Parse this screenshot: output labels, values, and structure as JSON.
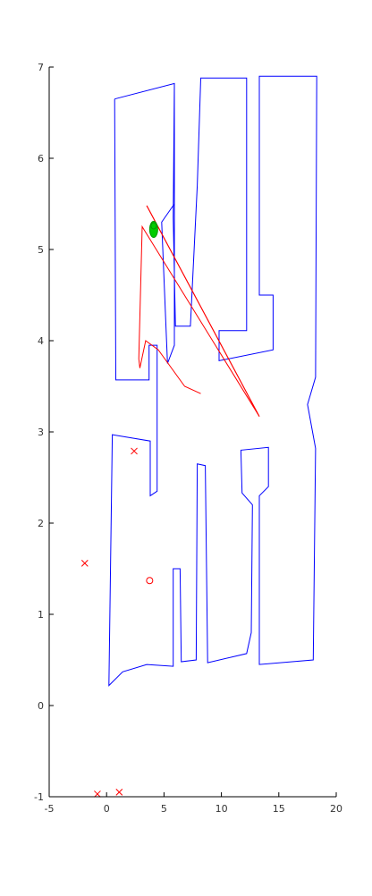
{
  "chart_data": {
    "type": "line",
    "title": "",
    "xlabel": "",
    "ylabel": "",
    "xlim": [
      -5,
      20
    ],
    "ylim": [
      -1,
      7
    ],
    "xticks": [
      -5,
      0,
      5,
      10,
      15,
      20
    ],
    "xtick_labels": [
      "-5",
      "0",
      "5",
      "10",
      "15",
      "20"
    ],
    "yticks": [
      -1,
      0,
      1,
      2,
      3,
      4,
      5,
      6,
      7
    ],
    "ytick_labels": [
      "-1",
      "0",
      "1",
      "2",
      "3",
      "4",
      "5",
      "6",
      "7"
    ],
    "grid": false,
    "colors": {
      "map": "#0000ff",
      "path": "#ff0000",
      "robot": "#00cc00"
    },
    "series": [
      {
        "kind": "map-outline",
        "points": [
          [
            0.7,
            6.65
          ],
          [
            5.9,
            6.82
          ],
          [
            5.9,
            3.95
          ],
          [
            5.3,
            3.75
          ],
          [
            4.8,
            5.3
          ],
          [
            5.9,
            5.5
          ],
          [
            5.9,
            6.82
          ]
        ]
      },
      {
        "kind": "map-outline",
        "points": [
          [
            0.7,
            6.65
          ],
          [
            0.8,
            3.57
          ],
          [
            3.7,
            3.57
          ],
          [
            3.7,
            3.95
          ],
          [
            4.4,
            3.95
          ],
          [
            4.4,
            2.35
          ],
          [
            3.8,
            2.3
          ],
          [
            3.8,
            2.9
          ],
          [
            0.5,
            2.97
          ],
          [
            0.2,
            0.22
          ],
          [
            1.4,
            0.37
          ],
          [
            3.5,
            0.45
          ],
          [
            5.8,
            0.43
          ],
          [
            5.8,
            1.5
          ],
          [
            6.4,
            1.5
          ],
          [
            6.5,
            0.48
          ],
          [
            7.8,
            0.5
          ],
          [
            7.9,
            2.65
          ],
          [
            8.6,
            2.63
          ],
          [
            8.8,
            0.47
          ],
          [
            12.2,
            0.57
          ],
          [
            12.6,
            0.8
          ],
          [
            12.7,
            2.2
          ],
          [
            11.8,
            2.33
          ],
          [
            11.7,
            2.8
          ],
          [
            14.1,
            2.83
          ],
          [
            14.1,
            2.4
          ],
          [
            13.3,
            2.3
          ],
          [
            13.3,
            0.45
          ],
          [
            18.0,
            0.5
          ],
          [
            18.2,
            2.82
          ],
          [
            17.5,
            3.3
          ],
          [
            18.2,
            3.6
          ],
          [
            18.3,
            6.9
          ],
          [
            13.3,
            6.9
          ],
          [
            13.3,
            4.5
          ],
          [
            14.5,
            4.5
          ],
          [
            14.5,
            3.9
          ],
          [
            9.8,
            3.78
          ],
          [
            9.8,
            4.11
          ],
          [
            12.2,
            4.11
          ],
          [
            12.2,
            6.88
          ],
          [
            8.2,
            6.88
          ],
          [
            7.9,
            5.7
          ],
          [
            7.3,
            4.16
          ],
          [
            6.0,
            4.16
          ],
          [
            5.8,
            5.35
          ],
          [
            5.9,
            6.82
          ]
        ]
      },
      {
        "kind": "path",
        "points": [
          [
            3.5,
            5.48
          ],
          [
            13.3,
            3.17
          ],
          [
            3.1,
            5.25
          ],
          [
            2.8,
            3.8
          ],
          [
            2.9,
            3.7
          ],
          [
            3.4,
            4.0
          ],
          [
            4.5,
            3.9
          ],
          [
            6.8,
            3.5
          ],
          [
            8.2,
            3.42
          ]
        ]
      },
      {
        "kind": "path",
        "points": [
          [
            3.5,
            5.48
          ],
          [
            13.3,
            3.17
          ]
        ]
      }
    ],
    "markers": [
      {
        "kind": "x",
        "x": 2.4,
        "y": 2.79
      },
      {
        "kind": "x",
        "x": -1.9,
        "y": 1.56
      },
      {
        "kind": "x",
        "x": -0.8,
        "y": -0.97
      },
      {
        "kind": "x",
        "x": 1.1,
        "y": -0.95
      },
      {
        "kind": "o",
        "x": 3.75,
        "y": 1.37
      },
      {
        "kind": "robot",
        "x": 4.1,
        "y": 5.22
      }
    ]
  }
}
